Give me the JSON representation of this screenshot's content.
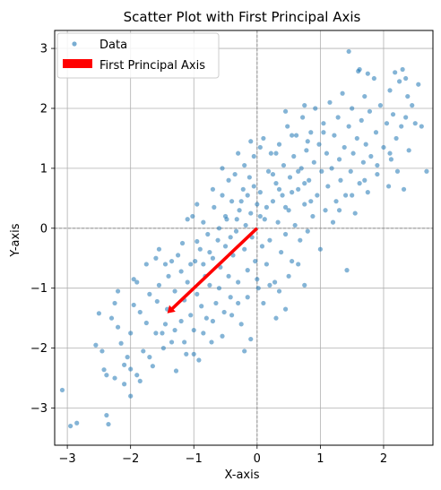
{
  "chart_data": {
    "type": "scatter",
    "title": "Scatter Plot with First Principal Axis",
    "xlabel": "X-axis",
    "ylabel": "Y-axis",
    "xlim": [
      -3.2,
      2.78
    ],
    "ylim": [
      -3.62,
      3.3
    ],
    "xticks": [
      -3,
      -2,
      -1,
      0,
      1,
      2
    ],
    "yticks": [
      -3,
      -2,
      -1,
      0,
      1,
      2,
      3
    ],
    "grid": true,
    "reference_lines": {
      "x": 0,
      "y": 0,
      "style": "dashed",
      "color": "#888888"
    },
    "legend": {
      "placement": "top-left",
      "entries": [
        {
          "label": "Data",
          "marker": "circle",
          "color": "#1f77b4"
        },
        {
          "label": "First Principal Axis",
          "marker": "rect",
          "color": "#ff0000"
        }
      ]
    },
    "series": [
      {
        "name": "Data",
        "kind": "scatter",
        "color": "#1f77b4",
        "opacity": 0.55,
        "points": [
          [
            -3.08,
            -2.7
          ],
          [
            -2.95,
            -3.3
          ],
          [
            -2.85,
            -3.25
          ],
          [
            -2.38,
            -3.12
          ],
          [
            -2.35,
            -3.27
          ],
          [
            -2.42,
            -2.36
          ],
          [
            -2.38,
            -2.45
          ],
          [
            -2.25,
            -2.5
          ],
          [
            -2.1,
            -2.28
          ],
          [
            -2.0,
            -2.35
          ],
          [
            -2.5,
            -1.42
          ],
          [
            -2.3,
            -1.5
          ],
          [
            -2.2,
            -1.65
          ],
          [
            -2.15,
            -1.92
          ],
          [
            -2.05,
            -2.15
          ],
          [
            -2.25,
            -1.25
          ],
          [
            -2.0,
            -1.75
          ],
          [
            -1.95,
            -1.28
          ],
          [
            -1.9,
            -0.9
          ],
          [
            -1.85,
            -1.4
          ],
          [
            -1.8,
            -2.05
          ],
          [
            -1.75,
            -1.58
          ],
          [
            -1.7,
            -1.1
          ],
          [
            -1.65,
            -2.3
          ],
          [
            -1.6,
            -0.5
          ],
          [
            -1.58,
            -1.22
          ],
          [
            -1.55,
            -0.95
          ],
          [
            -1.5,
            -1.75
          ],
          [
            -1.48,
            -2.0
          ],
          [
            -1.45,
            -0.6
          ],
          [
            -1.42,
            -1.35
          ],
          [
            -1.4,
            -0.8
          ],
          [
            -1.35,
            -1.9
          ],
          [
            -1.3,
            -1.05
          ],
          [
            -1.28,
            -2.38
          ],
          [
            -1.25,
            -0.45
          ],
          [
            -1.2,
            -1.55
          ],
          [
            -1.18,
            -0.25
          ],
          [
            -1.15,
            -1.2
          ],
          [
            -1.12,
            -2.1
          ],
          [
            -1.1,
            -0.9
          ],
          [
            -1.05,
            -1.45
          ],
          [
            -1.02,
            0.2
          ],
          [
            -1.0,
            -1.7
          ],
          [
            -0.98,
            -0.55
          ],
          [
            -0.95,
            -1.1
          ],
          [
            -0.92,
            -2.2
          ],
          [
            -0.9,
            -0.35
          ],
          [
            -0.88,
            -1.3
          ],
          [
            -0.85,
            0.1
          ],
          [
            -0.82,
            -0.8
          ],
          [
            -0.8,
            -1.5
          ],
          [
            -0.78,
            -0.1
          ],
          [
            -0.75,
            -0.95
          ],
          [
            -0.72,
            -1.9
          ],
          [
            -0.7,
            -0.5
          ],
          [
            -0.68,
            0.35
          ],
          [
            -0.65,
            -1.25
          ],
          [
            -0.62,
            -0.2
          ],
          [
            -0.6,
            -1.0
          ],
          [
            -0.58,
            -0.65
          ],
          [
            -0.55,
            0.55
          ],
          [
            -0.52,
            -1.4
          ],
          [
            -0.5,
            -0.3
          ],
          [
            -0.48,
            0.15
          ],
          [
            -0.45,
            -0.8
          ],
          [
            -0.42,
            -1.15
          ],
          [
            -0.4,
            0.45
          ],
          [
            -0.38,
            -0.45
          ],
          [
            -0.35,
            0.9
          ],
          [
            -0.33,
            -0.05
          ],
          [
            -0.3,
            -0.9
          ],
          [
            -0.28,
            0.3
          ],
          [
            -0.25,
            -1.6
          ],
          [
            -0.22,
            0.65
          ],
          [
            -0.2,
            -0.35
          ],
          [
            -0.18,
            0.05
          ],
          [
            -0.15,
            -0.7
          ],
          [
            -0.12,
            0.85
          ],
          [
            -0.1,
            0.25
          ],
          [
            -0.08,
            -0.15
          ],
          [
            -0.05,
            1.2
          ],
          [
            -0.03,
            -0.55
          ],
          [
            0.0,
            0.4
          ],
          [
            0.02,
            -1.0
          ],
          [
            0.05,
            0.6
          ],
          [
            0.08,
            -0.3
          ],
          [
            0.1,
            1.5
          ],
          [
            0.12,
            0.15
          ],
          [
            0.15,
            -0.6
          ],
          [
            0.18,
            0.95
          ],
          [
            0.2,
            -0.2
          ],
          [
            0.22,
            1.25
          ],
          [
            0.25,
            0.45
          ],
          [
            0.28,
            -0.9
          ],
          [
            0.3,
            0.75
          ],
          [
            0.33,
            0.1
          ],
          [
            0.35,
            1.4
          ],
          [
            0.38,
            -0.4
          ],
          [
            0.4,
            0.55
          ],
          [
            0.42,
            1.05
          ],
          [
            0.45,
            -0.1
          ],
          [
            0.48,
            1.7
          ],
          [
            0.5,
            0.3
          ],
          [
            0.52,
            0.85
          ],
          [
            0.55,
            -0.55
          ],
          [
            0.58,
            1.2
          ],
          [
            0.6,
            0.05
          ],
          [
            0.62,
            1.55
          ],
          [
            0.65,
            0.65
          ],
          [
            0.68,
            -0.2
          ],
          [
            0.7,
            1.0
          ],
          [
            0.72,
            1.85
          ],
          [
            0.75,
            0.4
          ],
          [
            0.78,
            1.3
          ],
          [
            0.8,
            -0.05
          ],
          [
            0.82,
            0.8
          ],
          [
            0.85,
            1.6
          ],
          [
            0.88,
            0.2
          ],
          [
            0.9,
            1.1
          ],
          [
            0.92,
            2.0
          ],
          [
            0.95,
            0.55
          ],
          [
            0.98,
            1.4
          ],
          [
            1.0,
            -0.35
          ],
          [
            1.02,
            0.95
          ],
          [
            1.05,
            1.75
          ],
          [
            1.08,
            0.3
          ],
          [
            1.1,
            1.25
          ],
          [
            1.12,
            0.7
          ],
          [
            1.15,
            2.1
          ],
          [
            1.18,
            1.0
          ],
          [
            1.2,
            0.1
          ],
          [
            1.22,
            1.55
          ],
          [
            1.25,
            0.45
          ],
          [
            1.28,
            1.85
          ],
          [
            1.3,
            1.15
          ],
          [
            1.32,
            0.8
          ],
          [
            1.35,
            2.25
          ],
          [
            1.38,
            1.35
          ],
          [
            1.4,
            0.55
          ],
          [
            1.42,
            -0.7
          ],
          [
            1.45,
            1.7
          ],
          [
            1.48,
            0.95
          ],
          [
            1.5,
            2.0
          ],
          [
            1.52,
            1.25
          ],
          [
            1.55,
            0.25
          ],
          [
            1.58,
            1.5
          ],
          [
            1.6,
            2.62
          ],
          [
            1.62,
            0.75
          ],
          [
            1.65,
            1.8
          ],
          [
            1.68,
            1.1
          ],
          [
            1.7,
            2.2
          ],
          [
            1.72,
            1.4
          ],
          [
            1.75,
            0.6
          ],
          [
            1.78,
            1.95
          ],
          [
            1.8,
            1.2
          ],
          [
            1.85,
            2.5
          ],
          [
            1.88,
            1.6
          ],
          [
            1.9,
            0.9
          ],
          [
            1.95,
            2.05
          ],
          [
            2.0,
            1.35
          ],
          [
            2.05,
            1.75
          ],
          [
            2.08,
            0.7
          ],
          [
            2.1,
            2.3
          ],
          [
            2.12,
            1.15
          ],
          [
            2.15,
            1.9
          ],
          [
            2.18,
            2.6
          ],
          [
            2.2,
            1.5
          ],
          [
            2.22,
            0.95
          ],
          [
            2.25,
            2.45
          ],
          [
            2.28,
            1.7
          ],
          [
            2.3,
            2.65
          ],
          [
            2.32,
            0.65
          ],
          [
            2.35,
            1.85
          ],
          [
            2.38,
            2.2
          ],
          [
            2.4,
            1.3
          ],
          [
            2.45,
            2.05
          ],
          [
            2.5,
            1.75
          ],
          [
            2.55,
            2.4
          ],
          [
            2.6,
            1.7
          ],
          [
            2.68,
            0.95
          ],
          [
            1.45,
            2.95
          ],
          [
            1.75,
            2.58
          ],
          [
            1.62,
            2.65
          ],
          [
            2.35,
            2.5
          ],
          [
            -1.95,
            -0.85
          ],
          [
            -1.75,
            -0.6
          ],
          [
            -1.55,
            -0.35
          ],
          [
            -1.35,
            -0.55
          ],
          [
            -1.2,
            -0.72
          ],
          [
            -1.05,
            -0.6
          ],
          [
            -0.95,
            -0.22
          ],
          [
            -0.85,
            -0.6
          ],
          [
            -0.75,
            -0.4
          ],
          [
            -0.6,
            0.0
          ],
          [
            -0.5,
            0.2
          ],
          [
            -0.42,
            -0.15
          ],
          [
            -0.32,
            0.15
          ],
          [
            -0.25,
            0.45
          ],
          [
            -0.15,
            0.55
          ],
          [
            -0.05,
            0.7
          ],
          [
            0.05,
            0.2
          ],
          [
            0.15,
            0.35
          ],
          [
            0.25,
            0.9
          ],
          [
            0.35,
            0.65
          ],
          [
            0.45,
            0.35
          ],
          [
            0.55,
            0.6
          ],
          [
            0.65,
            0.95
          ],
          [
            0.75,
            0.75
          ],
          [
            0.85,
            0.45
          ],
          [
            -2.0,
            -2.8
          ],
          [
            -1.85,
            -2.55
          ],
          [
            -1.7,
            -2.15
          ],
          [
            -1.6,
            -1.75
          ],
          [
            -1.45,
            -1.6
          ],
          [
            -1.3,
            -1.7
          ],
          [
            -1.15,
            -1.9
          ],
          [
            -1.0,
            -2.1
          ],
          [
            -0.85,
            -1.75
          ],
          [
            -0.7,
            -1.55
          ],
          [
            -0.55,
            -1.8
          ],
          [
            -0.4,
            -1.45
          ],
          [
            -0.3,
            -1.25
          ],
          [
            -0.15,
            -1.15
          ],
          [
            0.0,
            -0.85
          ],
          [
            0.1,
            -1.25
          ],
          [
            0.2,
            -0.95
          ],
          [
            0.35,
            -1.05
          ],
          [
            0.5,
            -0.8
          ],
          [
            0.65,
            -0.6
          ],
          [
            -1.1,
            0.15
          ],
          [
            -0.95,
            0.4
          ],
          [
            -0.7,
            0.65
          ],
          [
            -0.45,
            0.8
          ],
          [
            -0.2,
            1.05
          ],
          [
            0.05,
            1.35
          ],
          [
            0.3,
            1.25
          ],
          [
            0.55,
            1.55
          ],
          [
            0.8,
            1.45
          ],
          [
            1.05,
            1.6
          ],
          [
            1.3,
            0.3
          ],
          [
            1.5,
            0.55
          ],
          [
            1.7,
            0.8
          ],
          [
            1.9,
            1.05
          ],
          [
            2.1,
            1.25
          ],
          [
            -2.55,
            -1.95
          ],
          [
            -2.2,
            -1.05
          ],
          [
            -2.45,
            -2.05
          ],
          [
            -1.9,
            -2.45
          ],
          [
            -2.1,
            -2.6
          ],
          [
            -0.2,
            -2.05
          ],
          [
            -0.1,
            -1.85
          ],
          [
            0.3,
            -1.5
          ],
          [
            0.45,
            -1.35
          ],
          [
            0.75,
            -0.95
          ],
          [
            -0.55,
            1.0
          ],
          [
            -0.3,
            1.25
          ],
          [
            -0.1,
            1.45
          ],
          [
            0.45,
            1.95
          ],
          [
            0.75,
            2.05
          ]
        ]
      },
      {
        "name": "First Principal Axis",
        "kind": "arrow",
        "color": "#ff0000",
        "from": [
          0,
          0
        ],
        "to": [
          -1.42,
          -1.42
        ]
      }
    ]
  }
}
